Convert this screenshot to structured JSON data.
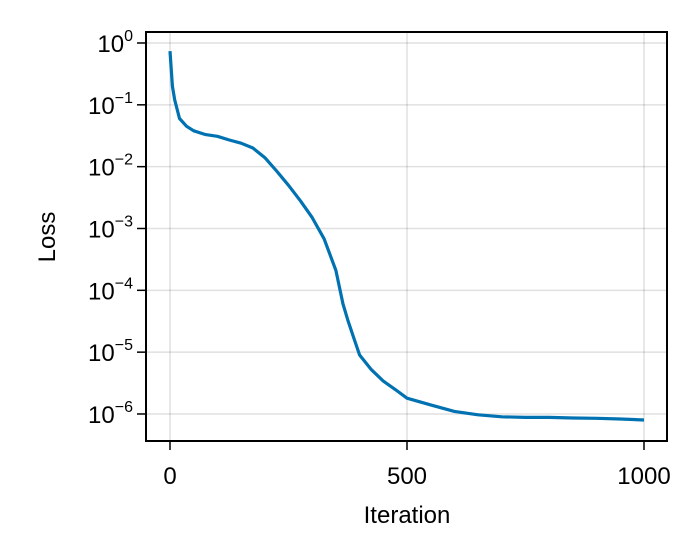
{
  "chart_data": {
    "type": "line",
    "title": "",
    "xlabel": "Iteration",
    "ylabel": "Loss",
    "xscale": "linear",
    "yscale": "log10",
    "xlim": [
      -50,
      1050
    ],
    "ylim": [
      4e-07,
      1.5
    ],
    "grid": true,
    "legend": null,
    "x_ticks": [
      0,
      500,
      1000
    ],
    "x_tick_labels": [
      "0",
      "500",
      "1000"
    ],
    "y_ticks": [
      1,
      0.1,
      0.01,
      0.001,
      0.0001,
      1e-05,
      1e-06
    ],
    "y_tick_labels": [
      {
        "base": "10",
        "exp": "0"
      },
      {
        "base": "10",
        "exp": "−1"
      },
      {
        "base": "10",
        "exp": "−2"
      },
      {
        "base": "10",
        "exp": "−3"
      },
      {
        "base": "10",
        "exp": "−4"
      },
      {
        "base": "10",
        "exp": "−5"
      },
      {
        "base": "10",
        "exp": "−6"
      }
    ],
    "series": [
      {
        "name": "Loss",
        "color": "#0072b2",
        "x": [
          0,
          5,
          10,
          20,
          35,
          50,
          75,
          100,
          125,
          150,
          175,
          200,
          225,
          250,
          275,
          300,
          325,
          350,
          365,
          375,
          390,
          400,
          425,
          450,
          475,
          500,
          550,
          600,
          650,
          700,
          750,
          800,
          850,
          900,
          950,
          1000
        ],
        "y": [
          0.74,
          0.2,
          0.12,
          0.06,
          0.045,
          0.038,
          0.033,
          0.031,
          0.027,
          0.024,
          0.02,
          0.014,
          0.0085,
          0.005,
          0.0028,
          0.0015,
          0.00068,
          0.00021,
          6e-05,
          3.3e-05,
          1.5e-05,
          9e-06,
          5.2e-06,
          3.4e-06,
          2.5e-06,
          1.8e-06,
          1.4e-06,
          1.1e-06,
          9.7e-07,
          9e-07,
          8.8e-07,
          8.8e-07,
          8.6e-07,
          8.5e-07,
          8.3e-07,
          8e-07
        ]
      }
    ]
  }
}
